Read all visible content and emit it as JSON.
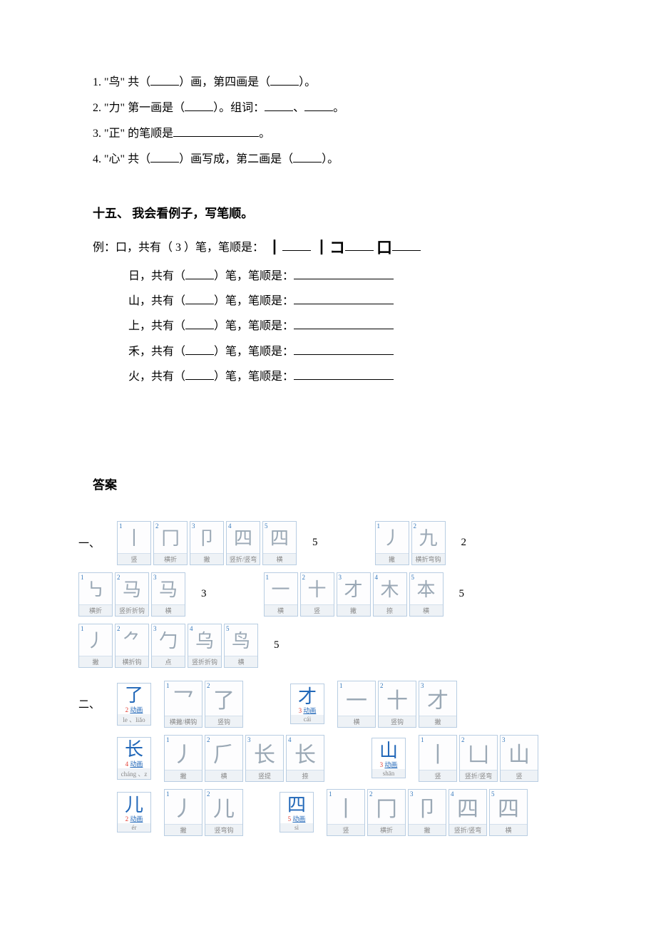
{
  "questions": {
    "q1_a": "1. \"鸟\" 共（",
    "q1_b": "）画，第四画是（",
    "q1_c": "）。",
    "q2_a": "2. \"力\" 第一画是（",
    "q2_b": "）。组词：",
    "q2_sep": "、",
    "q2_end": "。",
    "q3_a": "3. \"正\" 的笔顺是",
    "q3_end": "。",
    "q4_a": "4. \"心\" 共（",
    "q4_b": "）画写成，第二画是（",
    "q4_c": "）。"
  },
  "section15_title": "十五、 我会看例子，写笔顺。",
  "example": {
    "prefix": "例：口，共有（ 3 ）笔，笔顺是：",
    "stroke1": "丨",
    "u1": "__",
    "stroke2": "丨コ",
    "stroke3": "口",
    "u3": "__"
  },
  "sublines": [
    "日，共有（",
    "山，共有（",
    "上，共有（",
    "禾，共有（",
    "火，共有（"
  ],
  "subline_mid": "）笔，笔顺是：",
  "answer_title": "答案",
  "row1": {
    "label": "一、",
    "g1": [
      {
        "n": "1",
        "t": "丨",
        "cap": "竖"
      },
      {
        "n": "2",
        "t": "冂",
        "cap": "横折"
      },
      {
        "n": "3",
        "t": "卩",
        "cap": "撇"
      },
      {
        "n": "4",
        "t": "四",
        "cap": "竖折/竖弯"
      },
      {
        "n": "5",
        "t": "四",
        "cap": "横"
      }
    ],
    "c1": "5",
    "g2": [
      {
        "n": "1",
        "t": "丿",
        "cap": "撇"
      },
      {
        "n": "2",
        "t": "九",
        "cap": "横折弯钩"
      }
    ],
    "c2": "2"
  },
  "row2": {
    "g1": [
      {
        "n": "1",
        "t": "㇉",
        "cap": "横折"
      },
      {
        "n": "2",
        "t": "马",
        "cap": "竖折折钩"
      },
      {
        "n": "3",
        "t": "马",
        "cap": "横"
      }
    ],
    "c1": "3",
    "g2": [
      {
        "n": "1",
        "t": "一",
        "cap": "横"
      },
      {
        "n": "2",
        "t": "十",
        "cap": "竖"
      },
      {
        "n": "3",
        "t": "才",
        "cap": "撇"
      },
      {
        "n": "4",
        "t": "木",
        "cap": "捺"
      },
      {
        "n": "5",
        "t": "本",
        "cap": "横"
      }
    ],
    "c2": "5"
  },
  "row3": {
    "g1": [
      {
        "n": "1",
        "t": "丿",
        "cap": "撇"
      },
      {
        "n": "2",
        "t": "⺈",
        "cap": "横折钩"
      },
      {
        "n": "3",
        "t": "勹",
        "cap": "点"
      },
      {
        "n": "4",
        "t": "乌",
        "cap": "竖折折钩"
      },
      {
        "n": "5",
        "t": "鸟",
        "cap": "横"
      }
    ],
    "c1": "5"
  },
  "row4": {
    "label": "二、",
    "h1": {
      "char": "了",
      "red": "2",
      "link": "动画",
      "pin": "le 、liǎo"
    },
    "g1": [
      {
        "n": "1",
        "t": "乛",
        "cap": "横撇/横钩"
      },
      {
        "n": "2",
        "t": "了",
        "cap": "竖钩"
      }
    ],
    "h2": {
      "char": "才",
      "red": "3",
      "link": "动画",
      "pin": "cái"
    },
    "g2": [
      {
        "n": "1",
        "t": "一",
        "cap": "横"
      },
      {
        "n": "2",
        "t": "十",
        "cap": "竖钩"
      },
      {
        "n": "3",
        "t": "才",
        "cap": "撇"
      }
    ]
  },
  "row5": {
    "h1": {
      "char": "长",
      "red": "4",
      "link": "动画",
      "pin": "cháng 、z"
    },
    "g1": [
      {
        "n": "1",
        "t": "丿",
        "cap": "撇"
      },
      {
        "n": "2",
        "t": "⺁",
        "cap": "横"
      },
      {
        "n": "3",
        "t": "长",
        "cap": "竖提"
      },
      {
        "n": "4",
        "t": "长",
        "cap": "捺"
      }
    ],
    "h2": {
      "char": "山",
      "red": "3",
      "link": "动画",
      "pin": "shān"
    },
    "g2": [
      {
        "n": "1",
        "t": "丨",
        "cap": "竖"
      },
      {
        "n": "2",
        "t": "凵",
        "cap": "竖折/竖弯"
      },
      {
        "n": "3",
        "t": "山",
        "cap": "竖"
      }
    ]
  },
  "row6": {
    "h1": {
      "char": "儿",
      "red": "2",
      "link": "动画",
      "pin": "ér"
    },
    "g1": [
      {
        "n": "1",
        "t": "丿",
        "cap": "撇"
      },
      {
        "n": "2",
        "t": "儿",
        "cap": "竖弯钩"
      }
    ],
    "h2": {
      "char": "四",
      "red": "5",
      "link": "动画",
      "pin": "sì"
    },
    "g2": [
      {
        "n": "1",
        "t": "丨",
        "cap": "竖"
      },
      {
        "n": "2",
        "t": "冂",
        "cap": "横折"
      },
      {
        "n": "3",
        "t": "卩",
        "cap": "撇"
      },
      {
        "n": "4",
        "t": "四",
        "cap": "竖折/竖弯"
      },
      {
        "n": "5",
        "t": "四",
        "cap": "横"
      }
    ]
  }
}
